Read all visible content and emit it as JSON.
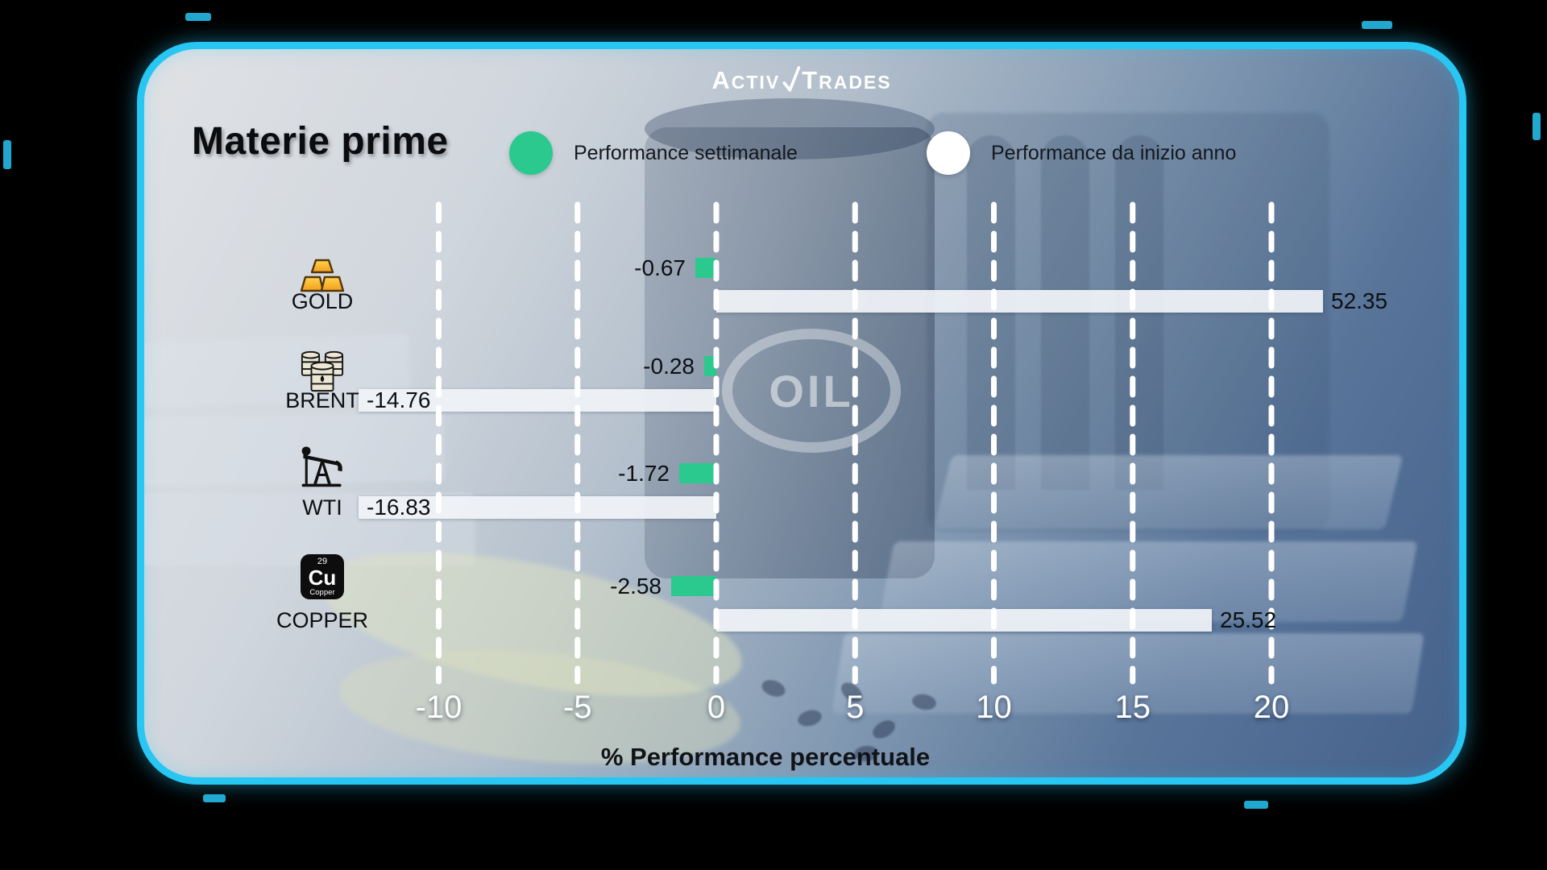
{
  "brand": {
    "name_part1": "ACTIV",
    "name_part2": "TRADES"
  },
  "title": "Materie prime",
  "legend": [
    {
      "label": "Performance settimanale",
      "color": "#2bc98e"
    },
    {
      "label": "Performance da inizio anno",
      "color": "#ffffff"
    }
  ],
  "background": {
    "emblem": "OIL"
  },
  "copper_tile": {
    "number": "29",
    "symbol": "Cu",
    "name": "Copper"
  },
  "chart_data": {
    "type": "bar",
    "orientation": "horizontal",
    "xlabel": "% Performance percentuale",
    "x_ticks": [
      -10,
      -5,
      0,
      5,
      10,
      15,
      20
    ],
    "xlim_visible": [
      -12.9,
      21.9
    ],
    "grid": "dashed-vertical-white",
    "legend_position": "top",
    "categories": [
      "GOLD",
      "BRENT",
      "WTI",
      "COPPER"
    ],
    "category_icons": [
      "gold-bars-icon",
      "oil-barrel-icon",
      "oil-pump-icon",
      "copper-element-icon"
    ],
    "series": [
      {
        "name": "Performance settimanale",
        "color": "#2bc98e",
        "values": [
          -0.67,
          -0.28,
          -1.72,
          -2.58
        ]
      },
      {
        "name": "Performance da inizio anno",
        "color": "#ffffff",
        "values": [
          52.35,
          -14.76,
          -16.83,
          25.52
        ]
      }
    ],
    "value_labels": {
      "weekly": [
        "-0.67",
        "-0.28",
        "-1.72",
        "-2.58"
      ],
      "ytd": [
        "52.35",
        "-14.76",
        "-16.83",
        "25.52"
      ]
    }
  }
}
